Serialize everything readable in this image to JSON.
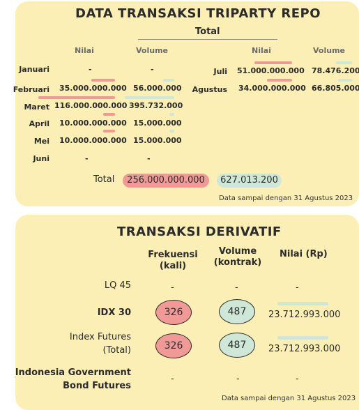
{
  "repo": {
    "title": "DATA TRANSAKSI TRIPARTY REPO",
    "group_header": "Total",
    "col_nilai": "Nilai",
    "col_volume": "Volume",
    "left_rows": [
      {
        "month": "Januari",
        "nilai": "-",
        "volume": "-"
      },
      {
        "month": "Februari",
        "nilai": "35.000.000.000",
        "volume": "56.000.000"
      },
      {
        "month": "Maret",
        "nilai": "116.000.000.000",
        "volume": "395.732.000"
      },
      {
        "month": "April",
        "nilai": "10.000.000.000",
        "volume": "15.000.000"
      },
      {
        "month": "Mei",
        "nilai": "10.000.000.000",
        "volume": "15.000.000"
      },
      {
        "month": "Juni",
        "nilai": "-",
        "volume": "-"
      }
    ],
    "right_rows": [
      {
        "month": "Juli",
        "nilai": "51.000.000.000",
        "volume": "78.476.200"
      },
      {
        "month": "Agustus",
        "nilai": "34.000.000.000",
        "volume": "66.805.000"
      }
    ],
    "total_label": "Total",
    "total_nilai": "256.000.000.000",
    "total_volume": "627.013.200",
    "note": "Data sampai dengan 31 Agustus 2023"
  },
  "deriv": {
    "title": "TRANSAKSI DERIVATIF",
    "col_frek_1": "Frekuensi",
    "col_frek_2": "(kali)",
    "col_vol_1": "Volume",
    "col_vol_2": "(kontrak)",
    "col_nilai": "Nilai (Rp)",
    "rows": [
      {
        "name_1": "LQ 45",
        "name_2": "",
        "frekuensi": "-",
        "volume": "-",
        "nilai": "-"
      },
      {
        "name_1": "IDX 30",
        "name_2": "",
        "frekuensi": "326",
        "volume": "487",
        "nilai": "23.712.993.000"
      },
      {
        "name_1": "Index Futures",
        "name_2": "(Total)",
        "frekuensi": "326",
        "volume": "487",
        "nilai": "23.712.993.000"
      },
      {
        "name_1": "Indonesia Government",
        "name_2": "Bond Futures",
        "frekuensi": "-",
        "volume": "-",
        "nilai": "-"
      }
    ],
    "note": "Data sampai dengan 31 Agustus 2023"
  },
  "colors": {
    "card": "#fbefb5",
    "red": "#f09a97",
    "green": "#cfe7d6"
  }
}
